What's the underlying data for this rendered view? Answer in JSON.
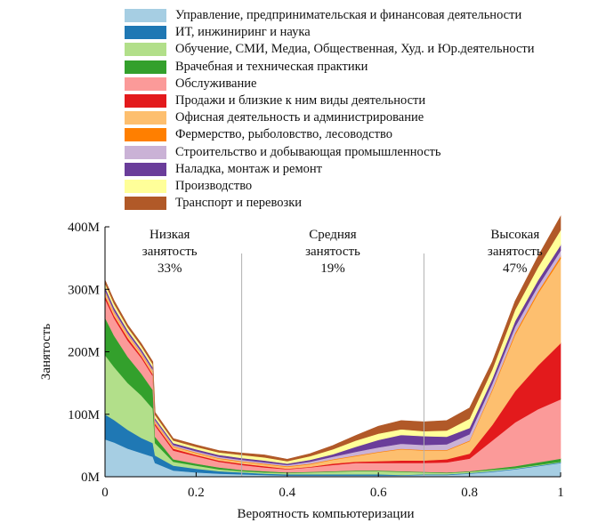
{
  "chart_data": {
    "type": "area",
    "xlabel": "Вероятность компьютеризации",
    "ylabel": "Занятость",
    "xlim": [
      0,
      1
    ],
    "ylim": [
      0,
      400000000
    ],
    "x_ticks": [
      0,
      0.2,
      0.4,
      0.6,
      0.8,
      1
    ],
    "x_tick_labels": [
      "0",
      "0.2",
      "0.4",
      "0.6",
      "0.8",
      "1"
    ],
    "y_ticks": [
      0,
      100000000,
      200000000,
      300000000,
      400000000
    ],
    "y_tick_labels": [
      "0M",
      "100M",
      "200M",
      "300M",
      "400M"
    ],
    "zone_dividers": [
      0.3,
      0.7
    ],
    "zones": [
      {
        "line1": "Низкая",
        "line2": "занятость",
        "share": "33%",
        "x": 0.142,
        "y": 350000000
      },
      {
        "line1": "Средняя",
        "line2": "занятость",
        "share": "19%",
        "x": 0.5,
        "y": 350000000
      },
      {
        "line1": "Высокая",
        "line2": "занятость",
        "share": "47%",
        "x": 0.9,
        "y": 350000000
      }
    ],
    "x": [
      0,
      0.02,
      0.05,
      0.08,
      0.105,
      0.11,
      0.15,
      0.2,
      0.25,
      0.3,
      0.35,
      0.4,
      0.45,
      0.5,
      0.55,
      0.6,
      0.65,
      0.7,
      0.75,
      0.8,
      0.85,
      0.9,
      0.95,
      1.0
    ],
    "series": [
      {
        "name": "Управление, предпринимательская  и финансовая деятельности",
        "color": "#a6cee3",
        "values": [
          60,
          55,
          45,
          38,
          32,
          22,
          10,
          7,
          5,
          4,
          3,
          2,
          2,
          2,
          2,
          2,
          2,
          3,
          3,
          5,
          8,
          12,
          17,
          22
        ]
      },
      {
        "name": "ИТ, инжиниринг и наука",
        "color": "#1f78b4",
        "values": [
          40,
          36,
          30,
          24,
          22,
          12,
          8,
          6,
          4,
          3,
          2,
          2,
          2,
          2,
          2,
          2,
          1,
          1,
          1,
          1,
          1,
          1,
          1,
          1
        ]
      },
      {
        "name": "Обучение, СМИ, Медиа, Общественная, Худ. и Юр.деятельности",
        "color": "#b2df8a",
        "values": [
          95,
          85,
          75,
          68,
          55,
          20,
          6,
          5,
          3,
          2,
          2,
          2,
          3,
          4,
          5,
          5,
          5,
          3,
          2,
          2,
          2,
          1,
          1,
          1
        ]
      },
      {
        "name": "Врачебная и техническая практики",
        "color": "#33a02c",
        "values": [
          60,
          50,
          42,
          35,
          30,
          10,
          4,
          3,
          3,
          2,
          2,
          1,
          1,
          1,
          1,
          1,
          1,
          1,
          1,
          1,
          2,
          3,
          4,
          5
        ]
      },
      {
        "name": "Обслуживание",
        "color": "#fb9a99",
        "values": [
          30,
          28,
          26,
          25,
          22,
          18,
          14,
          12,
          9,
          8,
          6,
          5,
          7,
          10,
          12,
          12,
          13,
          14,
          16,
          20,
          45,
          70,
          85,
          95
        ]
      },
      {
        "name": "Продажи и близкие к ним виды деятельности",
        "color": "#e31a1c",
        "values": [
          5,
          4,
          4,
          3,
          3,
          3,
          3,
          2,
          2,
          2,
          2,
          1,
          1,
          2,
          2,
          3,
          4,
          4,
          5,
          8,
          25,
          50,
          70,
          90
        ]
      },
      {
        "name": "Офисная деятельность и администрирование",
        "color": "#fdbf6f",
        "values": [
          6,
          5,
          5,
          4,
          4,
          3,
          3,
          3,
          3,
          3,
          3,
          3,
          4,
          6,
          9,
          14,
          18,
          16,
          14,
          20,
          55,
          90,
          115,
          135
        ]
      },
      {
        "name": "Фермерство, рыболовство, лесоводство",
        "color": "#ff7f00",
        "values": [
          1,
          1,
          1,
          1,
          1,
          1,
          1,
          1,
          1,
          1,
          1,
          1,
          1,
          1,
          1,
          1,
          1,
          1,
          1,
          1,
          2,
          3,
          3,
          4
        ]
      },
      {
        "name": "Строительство и добывающая промышленность",
        "color": "#cab2d6",
        "values": [
          2,
          2,
          2,
          2,
          2,
          2,
          2,
          2,
          2,
          2,
          2,
          2,
          3,
          4,
          6,
          7,
          8,
          8,
          9,
          10,
          9,
          10,
          9,
          9
        ]
      },
      {
        "name": "Наладка, монтаж и ремонт",
        "color": "#6a3d9a",
        "values": [
          5,
          5,
          4,
          4,
          4,
          3,
          3,
          3,
          3,
          3,
          3,
          2,
          3,
          4,
          8,
          12,
          14,
          14,
          12,
          10,
          8,
          9,
          9,
          9
        ]
      },
      {
        "name": "Производство",
        "color": "#ffff99",
        "values": [
          6,
          6,
          5,
          5,
          5,
          5,
          4,
          4,
          4,
          5,
          5,
          4,
          6,
          8,
          10,
          10,
          9,
          8,
          10,
          15,
          15,
          18,
          21,
          24
        ]
      },
      {
        "name": "Транспорт и перевозки",
        "color": "#b15928",
        "values": [
          5,
          5,
          4,
          4,
          4,
          4,
          3,
          3,
          3,
          3,
          4,
          3,
          4,
          6,
          8,
          12,
          14,
          15,
          16,
          17,
          12,
          14,
          17,
          22
        ]
      }
    ]
  }
}
